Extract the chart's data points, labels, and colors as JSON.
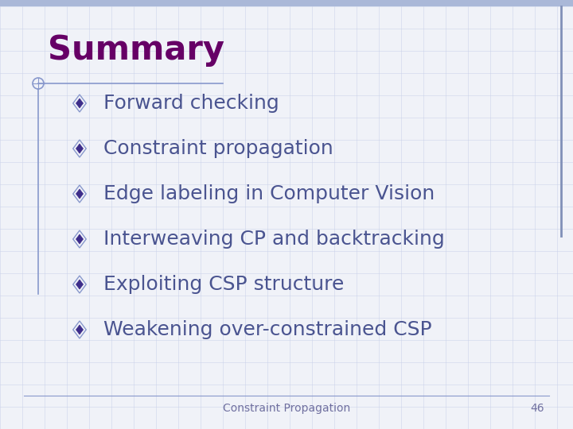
{
  "title": "Summary",
  "title_color": "#660066",
  "title_fontsize": 30,
  "title_bold": true,
  "bullet_items": [
    "Forward checking",
    "Constraint propagation",
    "Edge labeling in Computer Vision",
    "Interweaving CP and backtracking",
    "Exploiting CSP structure",
    "Weakening over-constrained CSP"
  ],
  "bullet_color": "#4a5490",
  "bullet_fontsize": 18,
  "diamond_fill": "#3d2d8a",
  "diamond_outline": "#8898cc",
  "background_color": "#f0f2f8",
  "grid_color": "#c8d0e8",
  "footer_text": "Constraint Propagation",
  "footer_number": "46",
  "footer_color": "#7070a0",
  "footer_fontsize": 10,
  "line_color": "#8898cc",
  "top_accent_color": "#aab8d8",
  "right_accent_color": "#8090b8"
}
